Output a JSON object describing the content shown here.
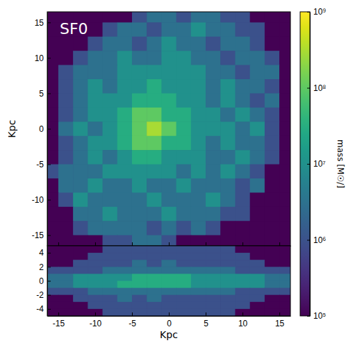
{
  "chart_data": {
    "type": "heatmap",
    "annotation": "SF0",
    "xlabel": "Kpc",
    "ylabel": "Kpc",
    "xlim": [
      -16.5,
      16.5
    ],
    "xticks": [
      -15,
      -10,
      -5,
      0,
      5,
      10,
      15
    ],
    "colorbar": {
      "label": "mass [M☉/]",
      "log": true,
      "range": [
        100000.0,
        1000000000.0
      ],
      "ticks": [
        {
          "value": 100000.0,
          "label": "10⁵"
        },
        {
          "value": 1000000.0,
          "label": "10⁶"
        },
        {
          "value": 10000000.0,
          "label": "10⁷"
        },
        {
          "value": 100000000.0,
          "label": "10⁸"
        },
        {
          "value": 1000000000.0,
          "label": "10⁹"
        }
      ]
    },
    "panels": [
      {
        "ylim": [
          -16.5,
          16.5
        ],
        "yticks": [
          -15,
          -10,
          -5,
          0,
          5,
          10,
          15
        ],
        "x": [
          -17,
          -15,
          -13,
          -11,
          -9,
          -7,
          -5,
          -3,
          -1,
          1,
          3,
          5,
          7,
          9,
          11,
          13,
          15,
          17
        ],
        "y": [
          17,
          15,
          13,
          11,
          9,
          7,
          5,
          3,
          1,
          -1,
          -3,
          -5,
          -7,
          -9,
          -11,
          -13,
          -15,
          -17
        ],
        "cells": [
          [
            100000.0,
            100000.0,
            100000.0,
            100000.0,
            100000.0,
            100000.0,
            1000000.0,
            3000000.0,
            3000000.0,
            1000000.0,
            3000000.0,
            3000000.0,
            1000000.0,
            1000000.0,
            100000.0,
            100000.0,
            100000.0
          ],
          [
            100000.0,
            100000.0,
            100000.0,
            100000.0,
            1000000.0,
            3000000.0,
            3000000.0,
            1000000.0,
            3000000.0,
            3000000.0,
            10000000.0,
            3000000.0,
            3000000.0,
            1000000.0,
            1000000.0,
            100000.0,
            100000.0
          ],
          [
            100000.0,
            100000.0,
            100000.0,
            1000000.0,
            3000000.0,
            3000000.0,
            1000000.0,
            3000000.0,
            10000000.0,
            3000000.0,
            3000000.0,
            1000000.0,
            3000000.0,
            3000000.0,
            1000000.0,
            100000.0,
            100000.0
          ],
          [
            100000.0,
            100000.0,
            1000000.0,
            3000000.0,
            3000000.0,
            10000000.0,
            3000000.0,
            3000000.0,
            10000000.0,
            10000000.0,
            3000000.0,
            3000000.0,
            1000000.0,
            3000000.0,
            3000000.0,
            1000000.0,
            100000.0
          ],
          [
            100000.0,
            1000000.0,
            3000000.0,
            3000000.0,
            3000000.0,
            10000000.0,
            10000000.0,
            10000000.0,
            10000000.0,
            10000000.0,
            10000000.0,
            3000000.0,
            3000000.0,
            1000000.0,
            3000000.0,
            3000000.0,
            100000.0
          ],
          [
            100000.0,
            1000000.0,
            3000000.0,
            10000000.0,
            3000000.0,
            10000000.0,
            10000000.0,
            30000000.0,
            10000000.0,
            10000000.0,
            10000000.0,
            3000000.0,
            10000000.0,
            3000000.0,
            3000000.0,
            1000000.0,
            100000.0
          ],
          [
            100000.0,
            1000000.0,
            3000000.0,
            10000000.0,
            10000000.0,
            10000000.0,
            30000000.0,
            30000000.0,
            30000000.0,
            10000000.0,
            10000000.0,
            3000000.0,
            10000000.0,
            3000000.0,
            1000000.0,
            3000000.0,
            100000.0
          ],
          [
            100000.0,
            1000000.0,
            3000000.0,
            10000000.0,
            10000000.0,
            30000000.0,
            100000000.0,
            100000000.0,
            30000000.0,
            30000000.0,
            10000000.0,
            10000000.0,
            3000000.0,
            10000000.0,
            3000000.0,
            1000000.0,
            100000.0
          ],
          [
            100000.0,
            3000000.0,
            10000000.0,
            3000000.0,
            10000000.0,
            30000000.0,
            100000000.0,
            300000000.0,
            100000000.0,
            30000000.0,
            10000000.0,
            10000000.0,
            10000000.0,
            3000000.0,
            10000000.0,
            1000000.0,
            100000.0
          ],
          [
            100000.0,
            1000000.0,
            3000000.0,
            10000000.0,
            10000000.0,
            30000000.0,
            100000000.0,
            100000000.0,
            30000000.0,
            30000000.0,
            10000000.0,
            3000000.0,
            10000000.0,
            3000000.0,
            3000000.0,
            1000000.0,
            100000.0
          ],
          [
            100000.0,
            1000000.0,
            3000000.0,
            10000000.0,
            3000000.0,
            10000000.0,
            30000000.0,
            30000000.0,
            10000000.0,
            10000000.0,
            10000000.0,
            3000000.0,
            3000000.0,
            10000000.0,
            3000000.0,
            1000000.0,
            100000.0
          ],
          [
            1000000.0,
            3000000.0,
            3000000.0,
            3000000.0,
            10000000.0,
            10000000.0,
            10000000.0,
            10000000.0,
            10000000.0,
            3000000.0,
            10000000.0,
            3000000.0,
            10000000.0,
            3000000.0,
            1000000.0,
            100000.0,
            100000.0
          ],
          [
            100000.0,
            3000000.0,
            3000000.0,
            10000000.0,
            3000000.0,
            3000000.0,
            10000000.0,
            3000000.0,
            3000000.0,
            10000000.0,
            3000000.0,
            3000000.0,
            3000000.0,
            1000000.0,
            3000000.0,
            100000.0,
            100000.0
          ],
          [
            100000.0,
            1000000.0,
            10000000.0,
            3000000.0,
            3000000.0,
            3000000.0,
            3000000.0,
            10000000.0,
            3000000.0,
            3000000.0,
            3000000.0,
            10000000.0,
            3000000.0,
            1000000.0,
            100000.0,
            100000.0,
            100000.0
          ],
          [
            100000.0,
            100000.0,
            3000000.0,
            3000000.0,
            10000000.0,
            3000000.0,
            3000000.0,
            3000000.0,
            10000000.0,
            3000000.0,
            3000000.0,
            3000000.0,
            1000000.0,
            1000000.0,
            100000.0,
            100000.0,
            100000.0
          ],
          [
            100000.0,
            100000.0,
            1000000.0,
            3000000.0,
            3000000.0,
            3000000.0,
            3000000.0,
            1000000.0,
            3000000.0,
            1000000.0,
            3000000.0,
            1000000.0,
            100000.0,
            100000.0,
            100000.0,
            100000.0,
            100000.0
          ],
          [
            100000.0,
            100000.0,
            100000.0,
            100000.0,
            1000000.0,
            1000000.0,
            3000000.0,
            3000000.0,
            1000000.0,
            100000.0,
            100000.0,
            100000.0,
            100000.0,
            100000.0,
            100000.0,
            100000.0,
            100000.0
          ]
        ]
      },
      {
        "ylim": [
          -5,
          5
        ],
        "yticks": [
          -4,
          -2,
          0,
          2,
          4
        ],
        "x": [
          -17,
          -15,
          -13,
          -11,
          -9,
          -7,
          -5,
          -3,
          -1,
          1,
          3,
          5,
          7,
          9,
          11,
          13,
          15,
          17
        ],
        "y": [
          5,
          4,
          3,
          2,
          1,
          0,
          -1,
          -2,
          -3,
          -4,
          -5
        ],
        "cells": [
          [
            100000.0,
            100000.0,
            100000.0,
            100000.0,
            1000000.0,
            1000000.0,
            1000000.0,
            1000000.0,
            1000000.0,
            1000000.0,
            1000000.0,
            1000000.0,
            1000000.0,
            100000.0,
            100000.0,
            100000.0,
            100000.0
          ],
          [
            100000.0,
            100000.0,
            100000.0,
            1000000.0,
            1000000.0,
            1000000.0,
            1000000.0,
            1000000.0,
            1000000.0,
            1000000.0,
            1000000.0,
            1000000.0,
            1000000.0,
            1000000.0,
            100000.0,
            100000.0,
            100000.0
          ],
          [
            100000.0,
            100000.0,
            1000000.0,
            1000000.0,
            1000000.0,
            1000000.0,
            3000000.0,
            1000000.0,
            3000000.0,
            1000000.0,
            1000000.0,
            1000000.0,
            1000000.0,
            1000000.0,
            1000000.0,
            100000.0,
            100000.0
          ],
          [
            1000000.0,
            1000000.0,
            1000000.0,
            1000000.0,
            3000000.0,
            3000000.0,
            3000000.0,
            3000000.0,
            3000000.0,
            3000000.0,
            3000000.0,
            3000000.0,
            3000000.0,
            1000000.0,
            1000000.0,
            1000000.0,
            1000000.0
          ],
          [
            3000000.0,
            3000000.0,
            10000000.0,
            10000000.0,
            10000000.0,
            10000000.0,
            30000000.0,
            30000000.0,
            30000000.0,
            30000000.0,
            10000000.0,
            10000000.0,
            10000000.0,
            10000000.0,
            10000000.0,
            3000000.0,
            3000000.0
          ],
          [
            3000000.0,
            3000000.0,
            10000000.0,
            10000000.0,
            10000000.0,
            30000000.0,
            30000000.0,
            30000000.0,
            30000000.0,
            30000000.0,
            10000000.0,
            10000000.0,
            10000000.0,
            10000000.0,
            10000000.0,
            3000000.0,
            3000000.0
          ],
          [
            1000000.0,
            1000000.0,
            1000000.0,
            3000000.0,
            3000000.0,
            3000000.0,
            3000000.0,
            3000000.0,
            3000000.0,
            3000000.0,
            3000000.0,
            3000000.0,
            3000000.0,
            1000000.0,
            1000000.0,
            1000000.0,
            1000000.0
          ],
          [
            100000.0,
            100000.0,
            1000000.0,
            1000000.0,
            1000000.0,
            3000000.0,
            1000000.0,
            3000000.0,
            1000000.0,
            1000000.0,
            1000000.0,
            1000000.0,
            1000000.0,
            1000000.0,
            1000000.0,
            100000.0,
            100000.0
          ],
          [
            100000.0,
            100000.0,
            100000.0,
            1000000.0,
            1000000.0,
            1000000.0,
            1000000.0,
            1000000.0,
            1000000.0,
            1000000.0,
            1000000.0,
            1000000.0,
            1000000.0,
            1000000.0,
            100000.0,
            100000.0,
            100000.0
          ],
          [
            100000.0,
            100000.0,
            100000.0,
            100000.0,
            1000000.0,
            1000000.0,
            1000000.0,
            1000000.0,
            1000000.0,
            1000000.0,
            1000000.0,
            1000000.0,
            1000000.0,
            100000.0,
            100000.0,
            100000.0,
            100000.0
          ]
        ]
      }
    ]
  }
}
